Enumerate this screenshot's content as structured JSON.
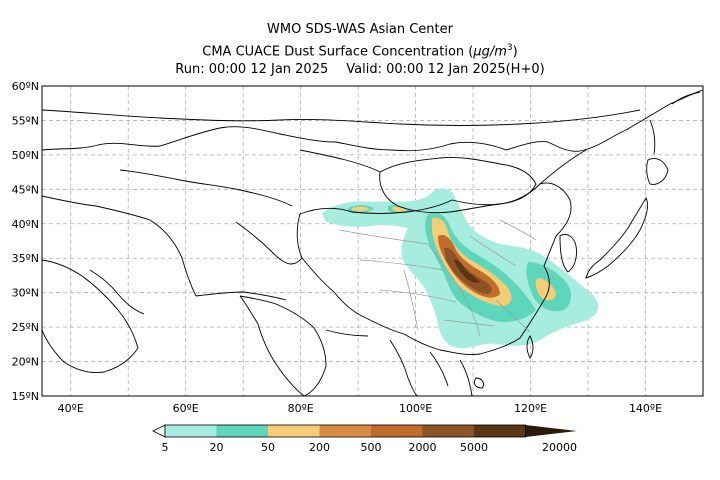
{
  "header": {
    "line1": "WMO SDS-WAS Asian Center",
    "line2_prefix": "CMA CUACE Dust Surface Concentration (",
    "line2_unit_mu": "μ",
    "line2_unit_rest": "g/m",
    "line2_unit_exp": "3",
    "line2_suffix": ")",
    "run": "Run: 00:00 12 Jan 2025",
    "valid": "Valid: 00:00 12 Jan 2025(H+0)"
  },
  "map": {
    "lon_range": [
      35,
      150
    ],
    "lat_range": [
      15,
      60
    ],
    "lat_ticks": [
      "60ºN",
      "55ºN",
      "50ºN",
      "45ºN",
      "40ºN",
      "35ºN",
      "30ºN",
      "25ºN",
      "20ºN",
      "15ºN"
    ],
    "lon_ticks": [
      "40ºE",
      "60ºE",
      "80ºE",
      "100ºE",
      "120ºE",
      "140ºE"
    ],
    "grid": true
  },
  "colorbar": {
    "labels": [
      "5",
      "20",
      "50",
      "200",
      "500",
      "2000",
      "5000",
      "20000"
    ],
    "colors": [
      "#a6ecdf",
      "#5ed6bb",
      "#f3cd78",
      "#d98c44",
      "#c06c2a",
      "#8c5426",
      "#5a3614",
      "#2b1a0a"
    ],
    "low_color": "#ffffff"
  },
  "colors": {
    "land_line": "#000000",
    "province_line": "#999999",
    "grid_line": "#b0b0b0"
  }
}
